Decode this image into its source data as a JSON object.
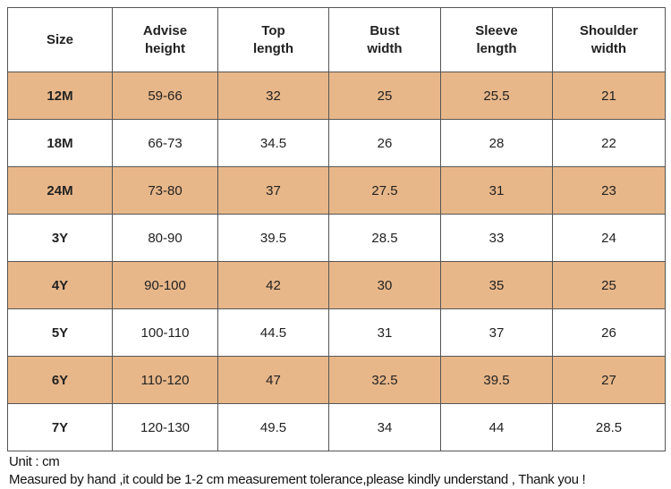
{
  "table": {
    "header": [
      [
        "Size"
      ],
      [
        "Advise",
        "height"
      ],
      [
        "Top",
        "length"
      ],
      [
        "Bust",
        "width"
      ],
      [
        "Sleeve",
        "length"
      ],
      [
        "Shoulder",
        "width"
      ]
    ],
    "rows": [
      [
        "12M",
        "59-66",
        "32",
        "25",
        "25.5",
        "21"
      ],
      [
        "18M",
        "66-73",
        "34.5",
        "26",
        "28",
        "22"
      ],
      [
        "24M",
        "73-80",
        "37",
        "27.5",
        "31",
        "23"
      ],
      [
        "3Y",
        "80-90",
        "39.5",
        "28.5",
        "33",
        "24"
      ],
      [
        "4Y",
        "90-100",
        "42",
        "30",
        "35",
        "25"
      ],
      [
        "5Y",
        "100-110",
        "44.5",
        "31",
        "37",
        "26"
      ],
      [
        "6Y",
        "110-120",
        "47",
        "32.5",
        "39.5",
        "27"
      ],
      [
        "7Y",
        "120-130",
        "49.5",
        "34",
        "44",
        "28.5"
      ]
    ]
  },
  "notes": [
    "Unit : cm",
    "Measured by hand ,it could be 1-2 cm measurement tolerance,please kindly understand , Thank you !"
  ]
}
